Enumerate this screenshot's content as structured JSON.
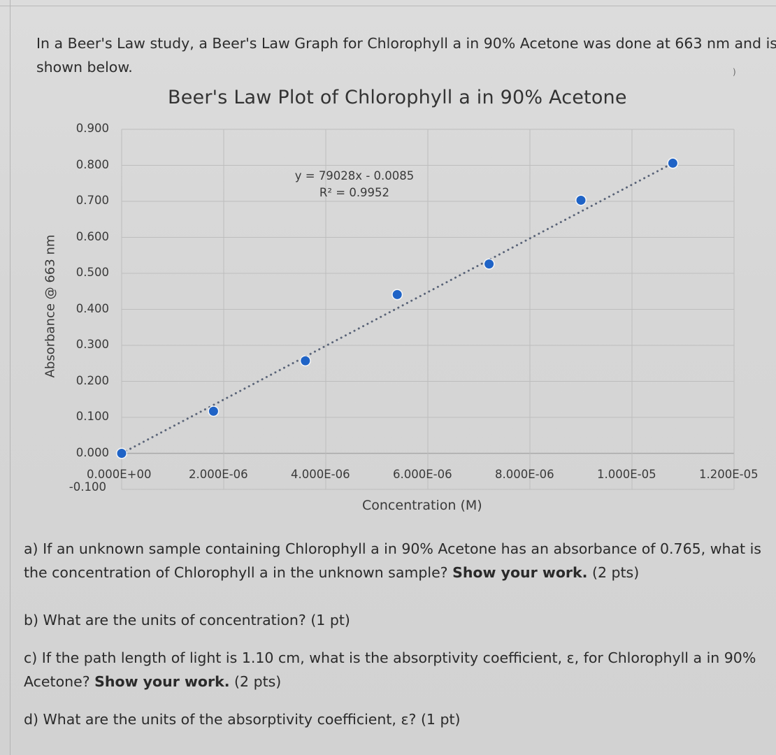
{
  "intro": {
    "text": "In a Beer's Law study, a Beer's Law Graph for Chlorophyll a in 90% Acetone was done at 663 nm and is shown below."
  },
  "stray_mark": ")",
  "chart": {
    "title": "Beer's Law Plot of Chlorophyll a in 90% Acetone",
    "y_axis_title": "Absorbance @ 663 nm",
    "x_axis_title": "Concentration (M)",
    "equation": "y = 79028x - 0.0085",
    "r_squared": "R² = 0.9952",
    "y_ticks": [
      "0.900",
      "0.800",
      "0.700",
      "0.600",
      "0.500",
      "0.400",
      "0.300",
      "0.200",
      "0.100",
      "0.000",
      "-0.100"
    ],
    "x_ticks": [
      "0.000E+00",
      "2.000E-06",
      "4.000E-06",
      "6.000E-06",
      "8.000E-06",
      "1.000E-05",
      "1.200E-05"
    ],
    "marker_color": "#1f63c6",
    "trendline_color": "#5a6478",
    "grid_color": "#bdbdbd"
  },
  "chart_data": {
    "type": "scatter",
    "title": "Beer's Law Plot of Chlorophyll a in 90% Acetone",
    "xlabel": "Concentration (M)",
    "ylabel": "Absorbance @ 663 nm",
    "xlim": [
      0,
      1.2e-05
    ],
    "ylim": [
      -0.1,
      0.9
    ],
    "x_tick_labels": [
      "0.000E+00",
      "2.000E-06",
      "4.000E-06",
      "6.000E-06",
      "8.000E-06",
      "1.000E-05",
      "1.200E-05"
    ],
    "y_tick_labels": [
      "-0.100",
      "0.000",
      "0.100",
      "0.200",
      "0.300",
      "0.400",
      "0.500",
      "0.600",
      "0.700",
      "0.800",
      "0.900"
    ],
    "grid": true,
    "legend": null,
    "series": [
      {
        "name": "Absorbance",
        "x": [
          0,
          1.8e-06,
          3.6e-06,
          5.4e-06,
          7.2e-06,
          9e-06,
          1.08e-05
        ],
        "y": [
          0.0,
          0.117,
          0.257,
          0.441,
          0.526,
          0.703,
          0.806
        ]
      }
    ],
    "trendline": {
      "type": "linear",
      "style": "dotted",
      "equation": "y = 79028x - 0.0085",
      "slope": 79028,
      "intercept": -0.0085,
      "r_squared": 0.9952
    }
  },
  "questions": {
    "a": {
      "text": "a) If an unknown sample containing Chlorophyll a in 90% Acetone has an absorbance of 0.765, what is the concentration of Chlorophyll a in the unknown sample? ",
      "bold": "Show your work.",
      "points": " (2 pts)"
    },
    "b": {
      "text": "b) What are the units of concentration? ",
      "points": " (1 pt)"
    },
    "c": {
      "text": "c) If the path length of light is 1.10 cm, what is the absorptivity coefficient, ε, for Chlorophyll a in 90% Acetone? ",
      "bold": "Show your work.",
      "points": " (2 pts)"
    },
    "d": {
      "text": "d) What are the units of the absorptivity coefficient, ε? ",
      "points": " (1 pt)"
    }
  }
}
